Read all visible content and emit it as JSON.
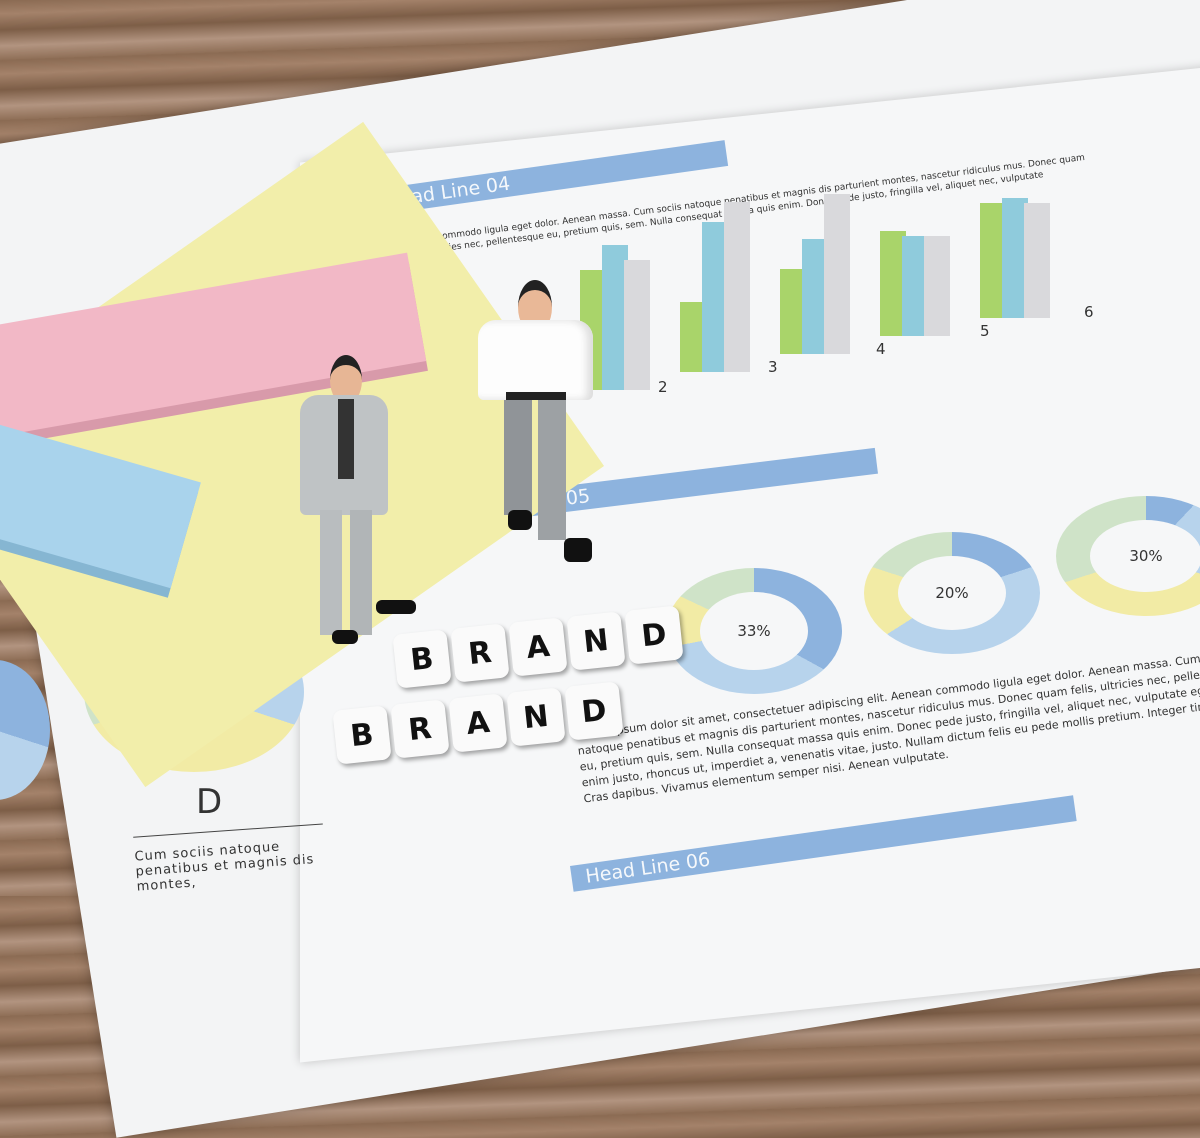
{
  "document": {
    "headlines": [
      "Head Line 04",
      "Head Line 05",
      "Head Line 06"
    ],
    "bar_chart_labels": [
      "2",
      "3",
      "4",
      "5",
      "6"
    ],
    "donut_labels": [
      "33%",
      "20%",
      "30%"
    ],
    "pie_label": "D",
    "pie_caption": "Cum sociis natoque penatibus et magnis dis montes,",
    "lorem": "Lorem ipsum dolor sit amet, consectetuer adipiscing elit. Aenean commodo ligula eget dolor. Aenean massa. Cum sociis natoque penatibus et magnis dis parturient montes, nascetur ridiculus mus. Donec quam felis, ultricies nec, pellentesque eu, pretium quis, sem. Nulla consequat massa quis enim. Donec pede justo, fringilla vel, aliquet nec, vulputate eget, arcu. In enim justo, rhoncus ut, imperdiet a, venenatis vitae, justo. Nullam dictum felis eu pede mollis pretium. Integer tincidunt. Cras dapibus. Vivamus elementum semper nisi. Aenean vulputate.",
    "top_text": "Aenean commodo ligula eget dolor. Aenean massa. Cum sociis natoque penatibus et magnis dis parturient montes, nascetur ridiculus mus. Donec quam felis, ultricies nec, pellentesque eu, pretium quis, sem. Nulla consequat massa quis enim. Donec pede justo, fringilla vel, aliquet nec, vulputate"
  },
  "blocks": {
    "row1": [
      "B",
      "R",
      "A",
      "N",
      "D"
    ],
    "row2": [
      "B",
      "R",
      "A",
      "N",
      "D"
    ]
  },
  "colors": {
    "blue": "#8db3de",
    "teal": "#8fcbdc",
    "green": "#a9d46a",
    "gray": "#d9d9dc",
    "yellow": "#f2eba5",
    "pink": "#f2b8c6",
    "lightblue": "#a9d3ec"
  }
}
